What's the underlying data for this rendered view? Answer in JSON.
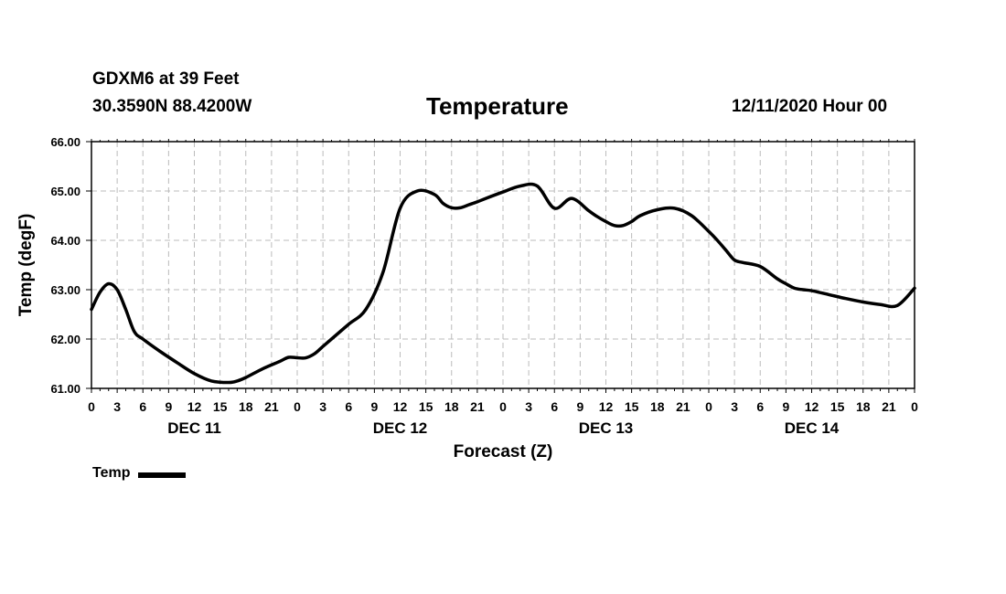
{
  "header": {
    "station": "GDXM6 at 39 Feet",
    "coords": "30.3590N 88.4200W",
    "title": "Temperature",
    "issued": "12/11/2020 Hour 00"
  },
  "legend": {
    "label": "Temp"
  },
  "colors": {
    "line": "#000000",
    "grid": "#bbbbbb",
    "background": "#ffffff"
  },
  "chart_data": {
    "type": "line",
    "title": "Temperature",
    "xlabel": "Forecast (Z)",
    "ylabel": "Temp (degF)",
    "ylim": [
      61,
      66
    ],
    "xlim": [
      0,
      96
    ],
    "grid": true,
    "legend_position": "bottom-left",
    "y_ticks": [
      "61.00",
      "62.00",
      "63.00",
      "64.00",
      "65.00",
      "66.00"
    ],
    "x_tick_labels": [
      "0",
      "3",
      "6",
      "9",
      "12",
      "15",
      "18",
      "21",
      "0",
      "3",
      "6",
      "9",
      "12",
      "15",
      "18",
      "21",
      "0",
      "3",
      "6",
      "9",
      "12",
      "15",
      "18",
      "21",
      "0",
      "3",
      "6",
      "9",
      "12",
      "15",
      "18",
      "21",
      "0"
    ],
    "day_labels": [
      {
        "label": "DEC 11",
        "hour": 12
      },
      {
        "label": "DEC 12",
        "hour": 36
      },
      {
        "label": "DEC 13",
        "hour": 60
      },
      {
        "label": "DEC 14",
        "hour": 84
      }
    ],
    "series": [
      {
        "name": "Temp",
        "x": [
          0,
          1,
          2,
          3,
          4,
          5,
          6,
          8,
          10,
          12,
          14,
          16,
          17,
          18,
          20,
          22,
          23,
          24,
          25,
          26,
          27,
          28,
          30,
          32,
          34,
          36,
          38,
          40,
          41,
          42,
          43,
          44,
          45,
          46,
          48,
          50,
          52,
          54,
          56,
          58,
          59,
          60,
          61,
          62,
          63,
          64,
          66,
          68,
          70,
          72,
          73,
          74,
          75,
          76,
          78,
          80,
          81,
          82,
          83,
          84,
          86,
          88,
          90,
          92,
          94,
          96
        ],
        "values": [
          62.6,
          62.95,
          63.12,
          63.0,
          62.6,
          62.15,
          62.0,
          61.75,
          61.52,
          61.3,
          61.15,
          61.12,
          61.15,
          61.22,
          61.4,
          61.55,
          61.63,
          61.62,
          61.62,
          61.7,
          61.85,
          62.0,
          62.3,
          62.6,
          63.35,
          64.65,
          65.0,
          64.93,
          64.75,
          64.66,
          64.66,
          64.72,
          64.78,
          64.85,
          64.98,
          65.1,
          65.1,
          64.65,
          64.85,
          64.6,
          64.48,
          64.38,
          64.3,
          64.3,
          64.38,
          64.5,
          64.62,
          64.65,
          64.5,
          64.18,
          64.0,
          63.8,
          63.6,
          63.55,
          63.47,
          63.22,
          63.12,
          63.03,
          63.0,
          62.98,
          62.9,
          62.82,
          62.75,
          62.7,
          62.68,
          63.03
        ]
      }
    ]
  }
}
